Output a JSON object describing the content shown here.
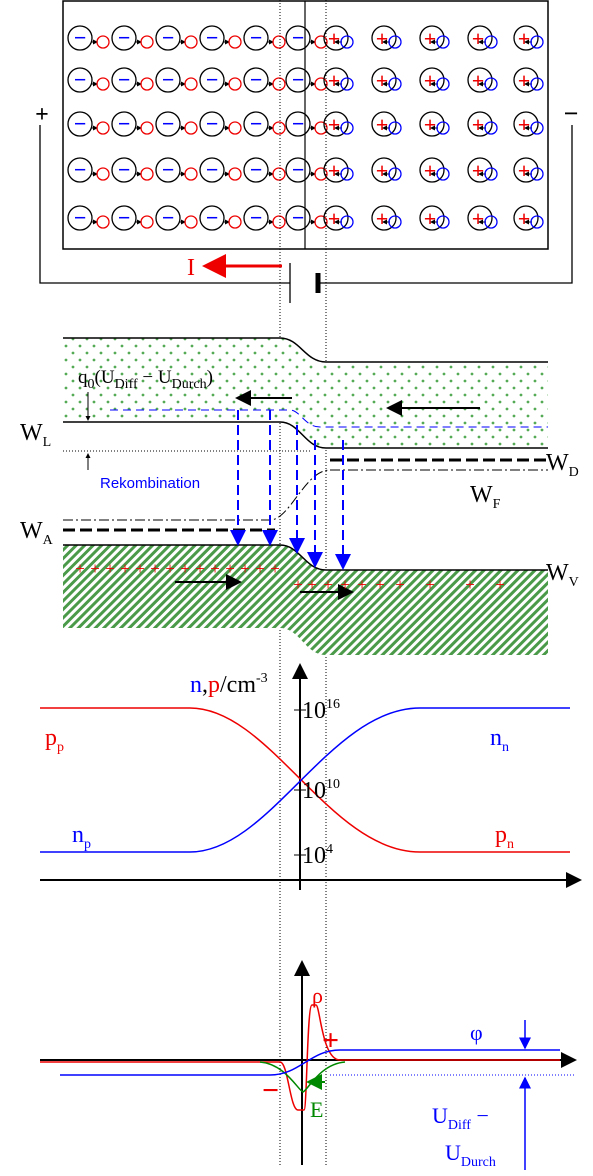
{
  "circuit": {
    "plus": "+",
    "minus": "−",
    "current": "I"
  },
  "particles": {
    "electron": "−",
    "hole": "+"
  },
  "band_diagram": {
    "gap_label": {
      "q": "q",
      "q_sub": "0",
      "open": "(U",
      "diff_sub": "Diff",
      "mid": " − U",
      "durch_sub": "Durch",
      "close": ")"
    },
    "W_L": {
      "symbol": "W",
      "sub": "L"
    },
    "W_D": {
      "symbol": "W",
      "sub": "D"
    },
    "W_F": {
      "symbol": "W",
      "sub": "F"
    },
    "W_A": {
      "symbol": "W",
      "sub": "A"
    },
    "W_V": {
      "symbol": "W",
      "sub": "V"
    },
    "recombination": "Rekombination",
    "hole_sign": "+"
  },
  "concentration": {
    "axis_label": {
      "n": "n",
      "comma": ",",
      "p": "p",
      "unit": "/cm",
      "exp": "-3"
    },
    "ticks": [
      {
        "base": "10",
        "exp": "16"
      },
      {
        "base": "10",
        "exp": "10"
      },
      {
        "base": "10",
        "exp": "4"
      }
    ],
    "p_p": {
      "symbol": "p",
      "sub": "p"
    },
    "n_n": {
      "symbol": "n",
      "sub": "n"
    },
    "n_p": {
      "symbol": "n",
      "sub": "p"
    },
    "p_n": {
      "symbol": "p",
      "sub": "n"
    }
  },
  "field": {
    "rho": "ρ",
    "phi": "φ",
    "plus": "+",
    "minus": "−",
    "E": "E",
    "voltage": {
      "u1": "U",
      "u1_sub": "Diff",
      "dash": " −",
      "u2": "U",
      "u2_sub": "Durch"
    }
  }
}
